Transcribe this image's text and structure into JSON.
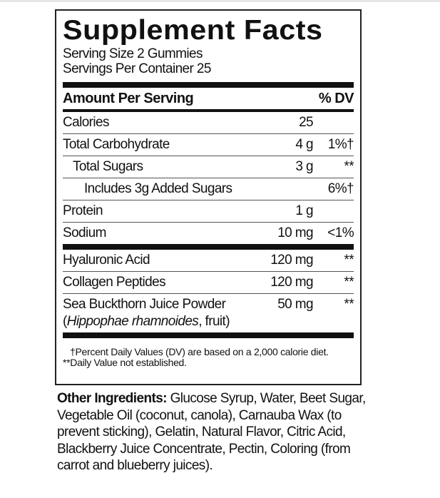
{
  "title": "Supplement Facts",
  "serving_size": "Serving Size 2 Gummies",
  "servings_per_container": "Servings Per Container 25",
  "header": {
    "amount": "Amount Per Serving",
    "dv": "% DV"
  },
  "nutrients": [
    {
      "name": "Calories",
      "amount": "25",
      "dv": ""
    },
    {
      "name": "Total Carbohydrate",
      "amount": "4 g",
      "dv": "1%†"
    },
    {
      "name": "Total Sugars",
      "amount": "3 g",
      "dv": "**"
    },
    {
      "name": "Includes 3g Added Sugars",
      "amount": "",
      "dv": "6%†"
    },
    {
      "name": "Protein",
      "amount": "1 g",
      "dv": ""
    },
    {
      "name": "Sodium",
      "amount": "10 mg",
      "dv": "<1%"
    }
  ],
  "ingredients": [
    {
      "name": "Hyaluronic Acid",
      "amount": "120 mg",
      "dv": "**"
    },
    {
      "name": "Collagen Peptides",
      "amount": "120 mg",
      "dv": "**"
    },
    {
      "name": "Sea Buckthorn Juice Powder",
      "latin": "Hippophae rhamnoides",
      "source": ", fruit)",
      "amount": "50 mg",
      "dv": "**"
    }
  ],
  "footnotes": [
    "†Percent Daily Values (DV) are based on a 2,000 calorie diet.",
    "**Daily Value not established."
  ],
  "other_ingredients": {
    "label": "Other Ingredients:",
    "text": " Glucose Syrup, Water, Beet Sugar, Vegetable Oil (coconut, canola), Carnauba Wax (to prevent sticking), Gelatin, Natural Flavor, Citric Acid, Blackberry Juice Concentrate, Pectin, Coloring (from carrot and blueberry juices)."
  }
}
